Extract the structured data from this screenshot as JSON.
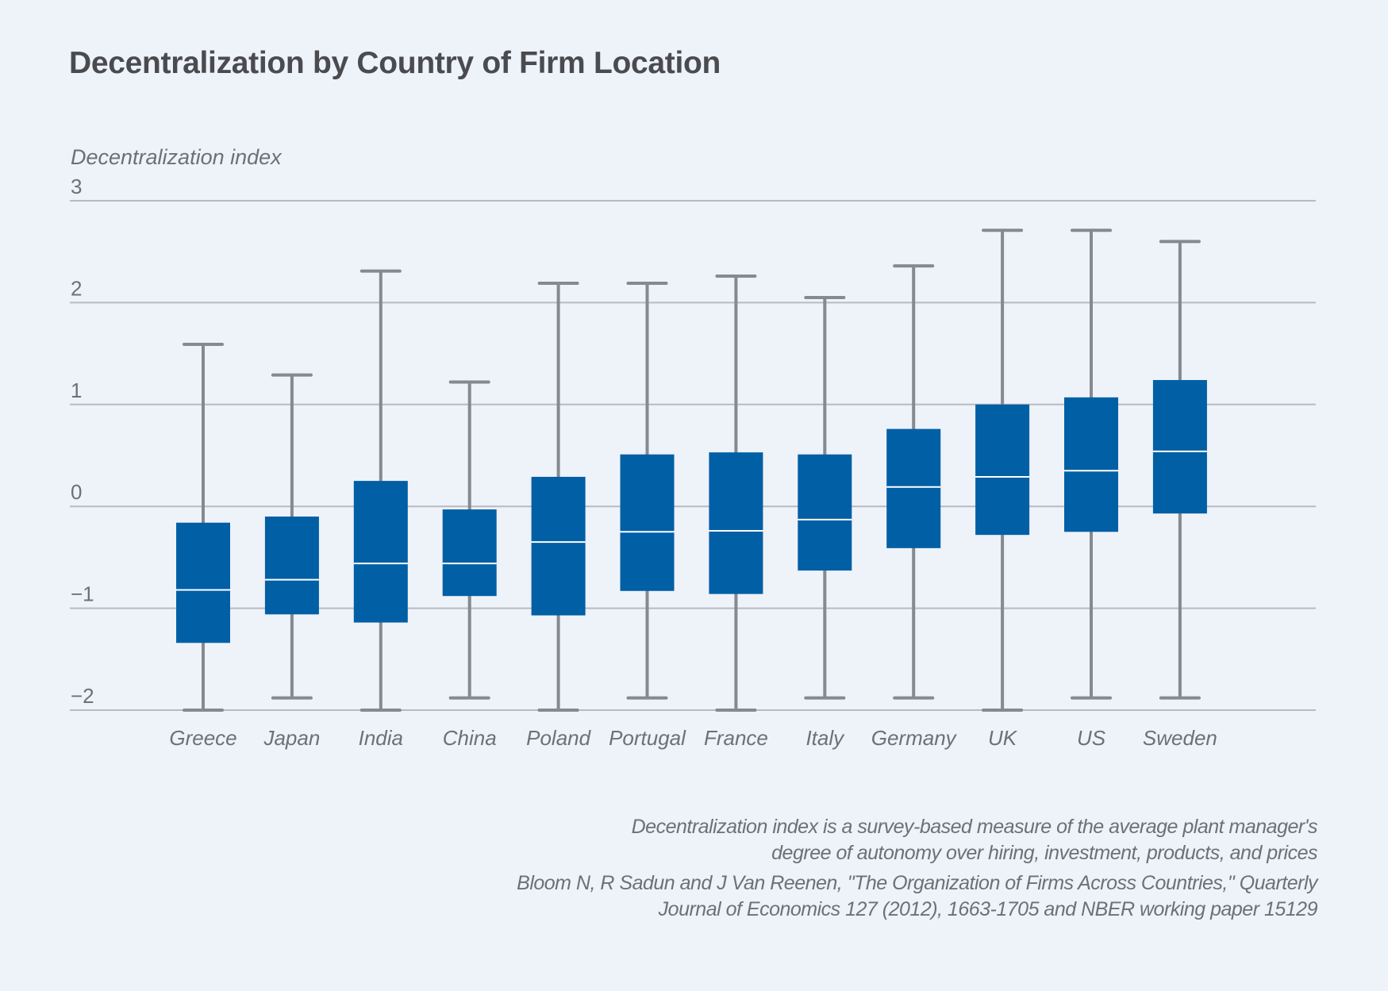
{
  "title": "Decentralization by Country of Firm Location",
  "footer": {
    "note_line1": "Decentralization index is a survey-based measure of the average plant manager's",
    "note_line2": "degree of autonomy over hiring, investment, products, and prices",
    "source_line1": "Bloom N, R Sadun and J Van Reenen, \"The Organization of Firms Across Countries,\" Quarterly",
    "source_line2": "Journal of Economics 127 (2012), 1663-1705 and NBER working paper 15129"
  },
  "colors": {
    "box": "#005fa5",
    "median": "#ffffff",
    "whisker": "#858a8f",
    "grid": "#b8bbc0",
    "background": "#eef2f9",
    "text": "#6d7075",
    "title": "#4a4b4f"
  },
  "chart_data": {
    "type": "boxplot",
    "title": "Decentralization by Country of Firm Location",
    "xlabel": "",
    "ylabel": "Decentralization index",
    "ylim": [
      -2,
      3
    ],
    "yticks": [
      3,
      2,
      1,
      0,
      -1,
      -2
    ],
    "ytick_labels": [
      "3",
      "2",
      "1",
      "0",
      "−1",
      "−2"
    ],
    "grid": true,
    "legend": "none",
    "categories": [
      "Greece",
      "Japan",
      "India",
      "China",
      "Poland",
      "Portugal",
      "France",
      "Italy",
      "Germany",
      "UK",
      "US",
      "Sweden"
    ],
    "series": [
      {
        "name": "Greece",
        "whisker_low": -2.0,
        "q1": -1.34,
        "median": -0.82,
        "q3": -0.16,
        "whisker_high": 1.59
      },
      {
        "name": "Japan",
        "whisker_low": -1.88,
        "q1": -1.06,
        "median": -0.72,
        "q3": -0.1,
        "whisker_high": 1.29
      },
      {
        "name": "India",
        "whisker_low": -2.0,
        "q1": -1.14,
        "median": -0.56,
        "q3": 0.25,
        "whisker_high": 2.31
      },
      {
        "name": "China",
        "whisker_low": -1.88,
        "q1": -0.88,
        "median": -0.56,
        "q3": -0.03,
        "whisker_high": 1.22
      },
      {
        "name": "Poland",
        "whisker_low": -2.0,
        "q1": -1.07,
        "median": -0.35,
        "q3": 0.29,
        "whisker_high": 2.19
      },
      {
        "name": "Portugal",
        "whisker_low": -1.88,
        "q1": -0.83,
        "median": -0.25,
        "q3": 0.51,
        "whisker_high": 2.19
      },
      {
        "name": "France",
        "whisker_low": -2.0,
        "q1": -0.86,
        "median": -0.24,
        "q3": 0.53,
        "whisker_high": 2.26
      },
      {
        "name": "Italy",
        "whisker_low": -1.88,
        "q1": -0.63,
        "median": -0.13,
        "q3": 0.51,
        "whisker_high": 2.05
      },
      {
        "name": "Germany",
        "whisker_low": -1.88,
        "q1": -0.41,
        "median": 0.19,
        "q3": 0.76,
        "whisker_high": 2.36
      },
      {
        "name": "UK",
        "whisker_low": -2.0,
        "q1": -0.28,
        "median": 0.29,
        "q3": 1.0,
        "whisker_high": 2.71
      },
      {
        "name": "US",
        "whisker_low": -1.88,
        "q1": -0.25,
        "median": 0.35,
        "q3": 1.07,
        "whisker_high": 2.71
      },
      {
        "name": "Sweden",
        "whisker_low": -1.88,
        "q1": -0.07,
        "median": 0.54,
        "q3": 1.24,
        "whisker_high": 2.6
      }
    ]
  }
}
